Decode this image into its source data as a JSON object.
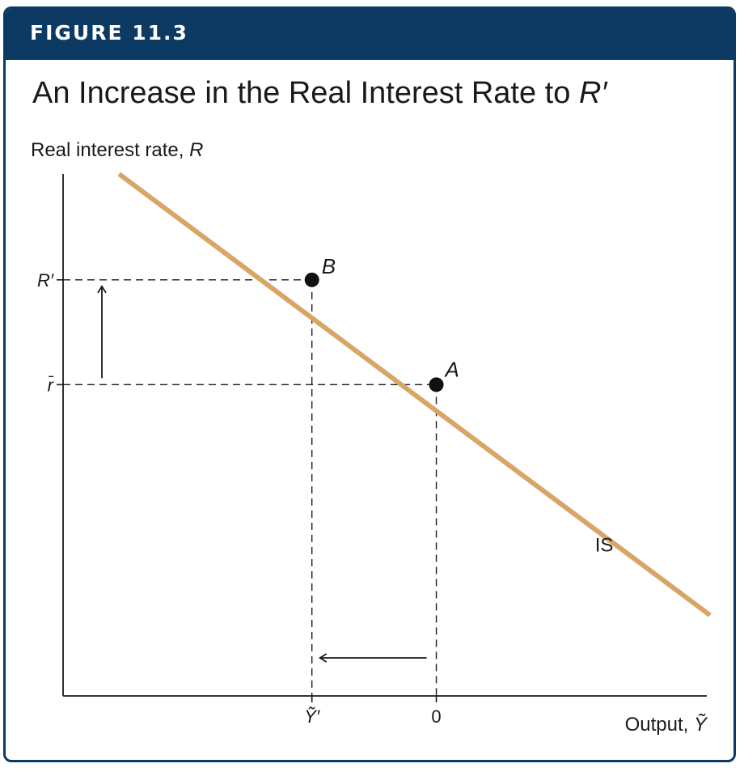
{
  "figure_label": "FIGURE 11.3",
  "title": {
    "text": "An Increase in the Real Interest Rate to ",
    "var": "R′"
  },
  "colors": {
    "banner": "#0d3a63",
    "is_curve": "#d8a566",
    "axis": "#1a1a1a"
  },
  "chart_data": {
    "type": "line",
    "title": "An Increase in the Real Interest Rate to R′",
    "ylabel": {
      "text": "Real interest rate, ",
      "var": "R"
    },
    "xlabel": {
      "text": "Output, ",
      "var": "Ỹ"
    },
    "x_ticks": [
      {
        "label": "Ỹ′",
        "value": -1
      },
      {
        "label": "0",
        "value": 0
      }
    ],
    "y_ticks": [
      {
        "label": "R′",
        "value": 1
      },
      {
        "label": "r̄",
        "value": 0
      }
    ],
    "xlim": [
      -3,
      2.2
    ],
    "ylim": [
      -2.97,
      2.01
    ],
    "series": [
      {
        "name": "IS",
        "points": [
          [
            -2.55,
            2.01
          ],
          [
            2.2,
            -2.2
          ]
        ]
      }
    ],
    "points": [
      {
        "label": "B",
        "x": -1,
        "y": 1
      },
      {
        "label": "A",
        "x": 0,
        "y": 0
      }
    ],
    "annotations": [
      {
        "type": "arrow",
        "direction": "up",
        "from": "r̄",
        "to": "R′"
      },
      {
        "type": "arrow",
        "direction": "left",
        "from": "0",
        "to": "Ỹ′"
      }
    ]
  }
}
